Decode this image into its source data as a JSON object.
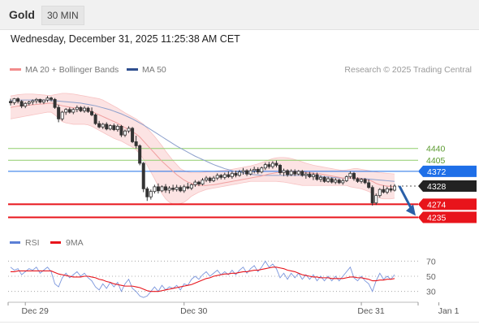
{
  "header": {
    "instrument": "Gold",
    "timeframe": "30 MIN"
  },
  "datetime": "Wednesday, December 31, 2025 11:25:38 AM CET",
  "legend": {
    "items": [
      {
        "label": "MA 20 + Bollinger Bands",
        "color": "#f28c8c"
      },
      {
        "label": "MA 50",
        "color": "#2f4f8f"
      }
    ]
  },
  "attribution": "Research © 2025 Trading Central",
  "price_levels": [
    {
      "value": 4440,
      "label": "4440",
      "kind": "resistance",
      "color": "#8fce6b"
    },
    {
      "value": 4405,
      "label": "4405",
      "kind": "resistance",
      "color": "#8fce6b"
    },
    {
      "value": 4372,
      "label": "4372",
      "kind": "pivot",
      "color": "#1e6fe8"
    },
    {
      "value": 4328,
      "label": "4328",
      "kind": "last-price",
      "color": "#222222"
    },
    {
      "value": 4274,
      "label": "4274",
      "kind": "support",
      "color": "#e8141b"
    },
    {
      "value": 4235,
      "label": "4235",
      "kind": "support",
      "color": "#e8141b"
    }
  ],
  "rsi_legend": {
    "items": [
      {
        "label": "RSI",
        "color": "#5b7fd6"
      },
      {
        "label": "9MA",
        "color": "#e8141b"
      }
    ]
  },
  "rsi_axis": [
    {
      "value": 70,
      "label": "70"
    },
    {
      "value": 50,
      "label": "50"
    },
    {
      "value": 30,
      "label": "30"
    }
  ],
  "x_axis": [
    {
      "label": "Dec 29",
      "index": 4
    },
    {
      "label": "Dec 30",
      "index": 47
    },
    {
      "label": "Dec 31",
      "index": 95
    },
    {
      "label": "Jan 1",
      "index": 116
    }
  ],
  "chart_data": {
    "type": "candlestick",
    "title": "Gold",
    "timeframe": "30 MIN",
    "price_range": [
      4200,
      4640
    ],
    "rsi_range": [
      20,
      80
    ],
    "arrow": {
      "from": 4328,
      "to": 4235,
      "direction": "down"
    },
    "candles": [
      [
        4580,
        4588,
        4568,
        4576
      ],
      [
        4576,
        4590,
        4570,
        4588
      ],
      [
        4588,
        4592,
        4574,
        4580
      ],
      [
        4580,
        4584,
        4560,
        4566
      ],
      [
        4566,
        4578,
        4560,
        4574
      ],
      [
        4574,
        4582,
        4568,
        4578
      ],
      [
        4578,
        4586,
        4570,
        4582
      ],
      [
        4582,
        4590,
        4574,
        4586
      ],
      [
        4586,
        4588,
        4574,
        4578
      ],
      [
        4578,
        4586,
        4572,
        4584
      ],
      [
        4584,
        4596,
        4578,
        4590
      ],
      [
        4590,
        4594,
        4580,
        4586
      ],
      [
        4586,
        4590,
        4558,
        4562
      ],
      [
        4562,
        4570,
        4518,
        4528
      ],
      [
        4528,
        4552,
        4522,
        4548
      ],
      [
        4548,
        4560,
        4540,
        4556
      ],
      [
        4556,
        4562,
        4544,
        4548
      ],
      [
        4548,
        4560,
        4542,
        4556
      ],
      [
        4556,
        4568,
        4548,
        4562
      ],
      [
        4562,
        4566,
        4548,
        4552
      ],
      [
        4552,
        4566,
        4546,
        4560
      ],
      [
        4560,
        4564,
        4546,
        4550
      ],
      [
        4550,
        4562,
        4536,
        4540
      ],
      [
        4540,
        4544,
        4510,
        4514
      ],
      [
        4514,
        4522,
        4500,
        4504
      ],
      [
        4504,
        4516,
        4498,
        4512
      ],
      [
        4512,
        4518,
        4494,
        4498
      ],
      [
        4498,
        4512,
        4494,
        4508
      ],
      [
        4508,
        4514,
        4492,
        4496
      ],
      [
        4496,
        4512,
        4490,
        4506
      ],
      [
        4506,
        4510,
        4474,
        4480
      ],
      [
        4480,
        4496,
        4474,
        4492
      ],
      [
        4492,
        4506,
        4486,
        4500
      ],
      [
        4500,
        4504,
        4456,
        4460
      ],
      [
        4460,
        4478,
        4440,
        4448
      ],
      [
        4448,
        4452,
        4390,
        4396
      ],
      [
        4396,
        4400,
        4310,
        4320
      ],
      [
        4320,
        4326,
        4284,
        4296
      ],
      [
        4296,
        4318,
        4288,
        4312
      ],
      [
        4312,
        4332,
        4306,
        4326
      ],
      [
        4326,
        4336,
        4306,
        4314
      ],
      [
        4314,
        4330,
        4310,
        4326
      ],
      [
        4326,
        4334,
        4308,
        4316
      ],
      [
        4316,
        4328,
        4306,
        4322
      ],
      [
        4322,
        4332,
        4312,
        4318
      ],
      [
        4318,
        4332,
        4312,
        4324
      ],
      [
        4324,
        4330,
        4310,
        4314
      ],
      [
        4314,
        4332,
        4308,
        4326
      ],
      [
        4326,
        4338,
        4318,
        4322
      ],
      [
        4322,
        4336,
        4316,
        4332
      ],
      [
        4332,
        4346,
        4326,
        4340
      ],
      [
        4340,
        4344,
        4328,
        4334
      ],
      [
        4334,
        4352,
        4330,
        4346
      ],
      [
        4346,
        4358,
        4340,
        4352
      ],
      [
        4352,
        4356,
        4338,
        4344
      ],
      [
        4344,
        4358,
        4340,
        4352
      ],
      [
        4352,
        4366,
        4346,
        4360
      ],
      [
        4360,
        4364,
        4348,
        4354
      ],
      [
        4354,
        4368,
        4348,
        4362
      ],
      [
        4362,
        4372,
        4352,
        4356
      ],
      [
        4356,
        4372,
        4350,
        4366
      ],
      [
        4366,
        4374,
        4354,
        4360
      ],
      [
        4360,
        4376,
        4356,
        4370
      ],
      [
        4370,
        4382,
        4362,
        4374
      ],
      [
        4374,
        4378,
        4358,
        4364
      ],
      [
        4364,
        4380,
        4360,
        4374
      ],
      [
        4374,
        4386,
        4366,
        4378
      ],
      [
        4378,
        4384,
        4364,
        4370
      ],
      [
        4370,
        4386,
        4366,
        4382
      ],
      [
        4382,
        4398,
        4376,
        4392
      ],
      [
        4392,
        4400,
        4380,
        4386
      ],
      [
        4386,
        4402,
        4380,
        4396
      ],
      [
        4396,
        4404,
        4384,
        4390
      ],
      [
        4390,
        4394,
        4362,
        4368
      ],
      [
        4368,
        4380,
        4358,
        4374
      ],
      [
        4374,
        4378,
        4356,
        4362
      ],
      [
        4362,
        4378,
        4358,
        4372
      ],
      [
        4372,
        4378,
        4358,
        4364
      ],
      [
        4364,
        4376,
        4360,
        4372
      ],
      [
        4372,
        4376,
        4356,
        4360
      ],
      [
        4360,
        4370,
        4350,
        4364
      ],
      [
        4364,
        4370,
        4352,
        4356
      ],
      [
        4356,
        4368,
        4346,
        4362
      ],
      [
        4362,
        4368,
        4344,
        4348
      ],
      [
        4348,
        4360,
        4340,
        4354
      ],
      [
        4354,
        4358,
        4338,
        4342
      ],
      [
        4342,
        4356,
        4338,
        4350
      ],
      [
        4350,
        4354,
        4336,
        4340
      ],
      [
        4340,
        4352,
        4334,
        4346
      ],
      [
        4346,
        4350,
        4334,
        4338
      ],
      [
        4338,
        4350,
        4332,
        4344
      ],
      [
        4344,
        4360,
        4340,
        4356
      ],
      [
        4356,
        4372,
        4350,
        4366
      ],
      [
        4366,
        4370,
        4344,
        4350
      ],
      [
        4350,
        4354,
        4338,
        4342
      ],
      [
        4342,
        4352,
        4336,
        4348
      ],
      [
        4348,
        4352,
        4334,
        4338
      ],
      [
        4338,
        4348,
        4320,
        4324
      ],
      [
        4324,
        4330,
        4270,
        4278
      ],
      [
        4278,
        4306,
        4272,
        4300
      ],
      [
        4300,
        4322,
        4294,
        4318
      ],
      [
        4318,
        4330,
        4306,
        4310
      ],
      [
        4310,
        4326,
        4304,
        4320
      ],
      [
        4320,
        4332,
        4310,
        4316
      ],
      [
        4316,
        4334,
        4312,
        4328
      ]
    ],
    "ma20": [
      4562,
      4564,
      4566,
      4567,
      4568,
      4569,
      4570,
      4571,
      4572,
      4573,
      4574,
      4575,
      4573,
      4570,
      4567,
      4565,
      4563,
      4561,
      4560,
      4558,
      4556,
      4554,
      4550,
      4545,
      4540,
      4535,
      4530,
      4525,
      4520,
      4515,
      4508,
      4502,
      4496,
      4490,
      4483,
      4474,
      4462,
      4450,
      4438,
      4426,
      4414,
      4402,
      4392,
      4382,
      4372,
      4362,
      4354,
      4346,
      4340,
      4336,
      4332,
      4330,
      4330,
      4330,
      4331,
      4332,
      4334,
      4336,
      4338,
      4340,
      4342,
      4344,
      4346,
      4348,
      4350,
      4352,
      4354,
      4356,
      4358,
      4361,
      4364,
      4366,
      4368,
      4369,
      4370,
      4370,
      4370,
      4370,
      4370,
      4370,
      4369,
      4368,
      4366,
      4365,
      4364,
      4362,
      4360,
      4358,
      4356,
      4354,
      4352,
      4351,
      4352,
      4353,
      4352,
      4350,
      4348,
      4346,
      4342,
      4336,
      4332,
      4330,
      4328,
      4327,
      4326
    ],
    "bb_upper": [
      4596,
      4598,
      4600,
      4601,
      4602,
      4602,
      4602,
      4601,
      4600,
      4599,
      4598,
      4598,
      4600,
      4602,
      4604,
      4604,
      4603,
      4602,
      4600,
      4598,
      4596,
      4594,
      4592,
      4590,
      4588,
      4584,
      4578,
      4572,
      4566,
      4560,
      4553,
      4546,
      4540,
      4534,
      4528,
      4520,
      4512,
      4500,
      4488,
      4476,
      4462,
      4448,
      4432,
      4418,
      4404,
      4392,
      4380,
      4374,
      4370,
      4368,
      4368,
      4368,
      4369,
      4370,
      4371,
      4372,
      4373,
      4374,
      4375,
      4376,
      4378,
      4380,
      4382,
      4384,
      4386,
      4388,
      4391,
      4394,
      4398,
      4402,
      4406,
      4410,
      4412,
      4413,
      4413,
      4412,
      4410,
      4407,
      4404,
      4400,
      4396,
      4393,
      4390,
      4388,
      4386,
      4384,
      4382,
      4380,
      4378,
      4376,
      4375,
      4376,
      4378,
      4380,
      4380,
      4378,
      4376,
      4374,
      4372,
      4370,
      4368,
      4367,
      4366,
      4365,
      4364
    ],
    "bb_lower": [
      4528,
      4530,
      4532,
      4534,
      4536,
      4538,
      4540,
      4542,
      4544,
      4546,
      4548,
      4548,
      4540,
      4530,
      4520,
      4516,
      4514,
      4512,
      4512,
      4512,
      4512,
      4510,
      4506,
      4500,
      4494,
      4488,
      4482,
      4476,
      4470,
      4466,
      4462,
      4456,
      4450,
      4444,
      4436,
      4424,
      4408,
      4390,
      4370,
      4350,
      4328,
      4306,
      4290,
      4280,
      4274,
      4274,
      4276,
      4280,
      4288,
      4298,
      4304,
      4310,
      4314,
      4318,
      4320,
      4322,
      4324,
      4326,
      4328,
      4330,
      4332,
      4334,
      4336,
      4338,
      4340,
      4342,
      4342,
      4342,
      4342,
      4342,
      4342,
      4342,
      4342,
      4341,
      4340,
      4338,
      4336,
      4334,
      4332,
      4330,
      4330,
      4330,
      4330,
      4330,
      4330,
      4330,
      4330,
      4330,
      4330,
      4330,
      4330,
      4330,
      4326,
      4324,
      4322,
      4320,
      4316,
      4312,
      4306,
      4300,
      4292,
      4290,
      4290,
      4290,
      4292
    ],
    "ma50": [
      4582,
      4583,
      4584,
      4584,
      4584,
      4584,
      4584,
      4584,
      4584,
      4584,
      4584,
      4583,
      4582,
      4581,
      4580,
      4579,
      4578,
      4577,
      4576,
      4575,
      4573,
      4571,
      4569,
      4567,
      4564,
      4561,
      4558,
      4555,
      4551,
      4547,
      4543,
      4538,
      4533,
      4528,
      4522,
      4516,
      4510,
      4503,
      4496,
      4489,
      4482,
      4475,
      4468,
      4461,
      4454,
      4447,
      4441,
      4435,
      4429,
      4423,
      4417,
      4412,
      4407,
      4402,
      4397,
      4392,
      4388,
      4384,
      4380,
      4377,
      4374,
      4371,
      4369,
      4367,
      4365,
      4363,
      4362,
      4361,
      4360,
      4360,
      4360,
      4360,
      4360,
      4360,
      4360,
      4360,
      4360,
      4360,
      4360,
      4360,
      4360,
      4360,
      4359,
      4358,
      4357,
      4356,
      4355,
      4354,
      4353,
      4352,
      4352,
      4352,
      4352,
      4352,
      4352,
      4351,
      4350,
      4349,
      4348,
      4347,
      4346,
      4345,
      4344,
      4343,
      4342
    ],
    "rsi": [
      62,
      58,
      60,
      52,
      56,
      60,
      58,
      62,
      54,
      58,
      62,
      56,
      40,
      36,
      48,
      54,
      48,
      52,
      56,
      50,
      54,
      48,
      44,
      36,
      32,
      40,
      34,
      42,
      36,
      42,
      30,
      40,
      46,
      34,
      30,
      24,
      22,
      24,
      30,
      36,
      30,
      38,
      32,
      36,
      34,
      38,
      32,
      40,
      38,
      46,
      50,
      46,
      52,
      56,
      50,
      54,
      58,
      52,
      56,
      52,
      58,
      52,
      58,
      62,
      54,
      60,
      64,
      56,
      62,
      70,
      62,
      66,
      60,
      48,
      54,
      46,
      54,
      48,
      54,
      46,
      52,
      46,
      52,
      44,
      50,
      44,
      50,
      44,
      50,
      44,
      50,
      56,
      62,
      48,
      44,
      50,
      44,
      40,
      30,
      44,
      54,
      46,
      50,
      46,
      52
    ],
    "rsi_ma": [
      56,
      56,
      57,
      57,
      57,
      57,
      57,
      57,
      57,
      57,
      57,
      57,
      55,
      53,
      52,
      51,
      50,
      49,
      49,
      49,
      50,
      50,
      49,
      48,
      46,
      45,
      43,
      42,
      40,
      39,
      38,
      37,
      37,
      37,
      36,
      35,
      33,
      31,
      30,
      30,
      30,
      31,
      32,
      33,
      34,
      35,
      36,
      37,
      38,
      39,
      41,
      43,
      45,
      47,
      48,
      50,
      51,
      52,
      53,
      53,
      54,
      54,
      55,
      56,
      56,
      57,
      58,
      58,
      59,
      60,
      61,
      62,
      62,
      61,
      60,
      58,
      57,
      56,
      54,
      52,
      51,
      50,
      49,
      49,
      48,
      48,
      48,
      47,
      47,
      47,
      47,
      48,
      49,
      49,
      48,
      48,
      47,
      46,
      44,
      44,
      45,
      45,
      46,
      46,
      47
    ]
  }
}
